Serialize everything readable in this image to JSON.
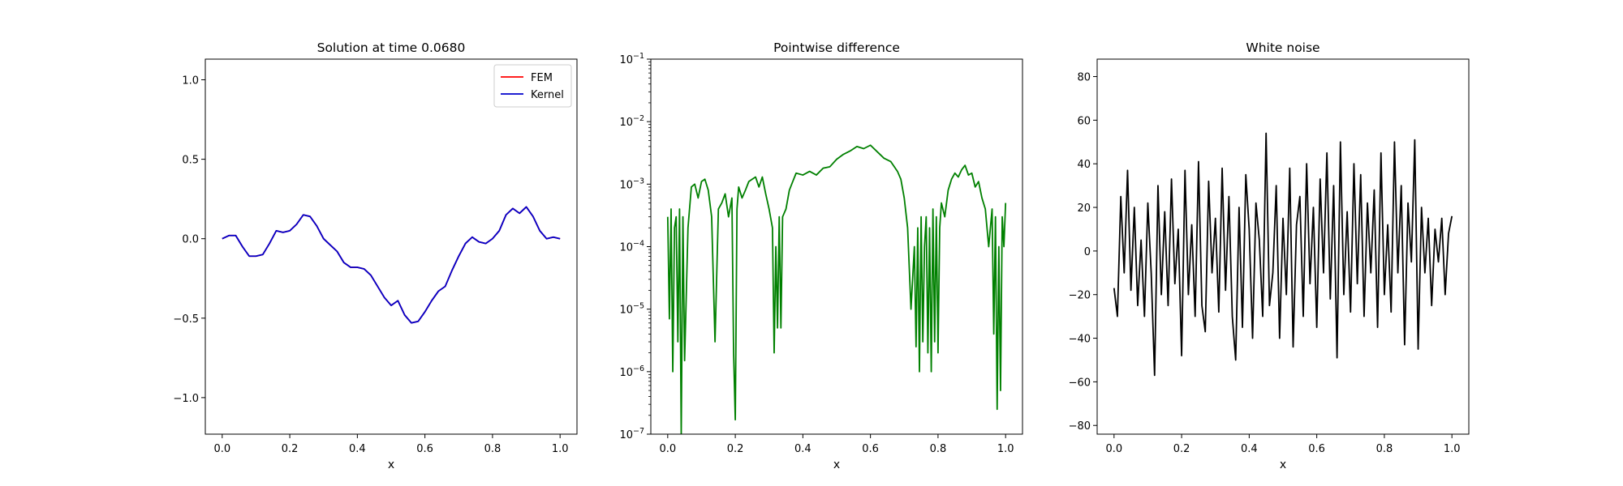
{
  "chart_data": [
    {
      "type": "line",
      "title": "Solution at time 0.0680",
      "xlabel": "x",
      "ylabel": "",
      "xlim": [
        -0.05,
        1.05
      ],
      "ylim": [
        -1.23,
        1.13
      ],
      "xticks": [
        0.0,
        0.2,
        0.4,
        0.6,
        0.8,
        1.0
      ],
      "xtick_labels": [
        "0.0",
        "0.2",
        "0.4",
        "0.6",
        "0.8",
        "1.0"
      ],
      "yticks": [
        1.0,
        0.5,
        0.0,
        -0.5,
        -1.0
      ],
      "ytick_labels": [
        "1.0",
        "0.5",
        "0.0",
        "−0.5",
        "−1.0"
      ],
      "grid": false,
      "legend": "top-right",
      "x": [
        0,
        0.02,
        0.04,
        0.06,
        0.08,
        0.1,
        0.12,
        0.14,
        0.16,
        0.18,
        0.2,
        0.22,
        0.24,
        0.26,
        0.28,
        0.3,
        0.32,
        0.34,
        0.36,
        0.38,
        0.4,
        0.42,
        0.44,
        0.46,
        0.48,
        0.5,
        0.52,
        0.54,
        0.56,
        0.58,
        0.6,
        0.62,
        0.64,
        0.66,
        0.68,
        0.7,
        0.72,
        0.74,
        0.76,
        0.78,
        0.8,
        0.82,
        0.84,
        0.86,
        0.88,
        0.9,
        0.92,
        0.94,
        0.96,
        0.98,
        1.0
      ],
      "series": [
        {
          "name": "FEM",
          "color": "#ff0000",
          "values": [
            0.0,
            0.02,
            0.02,
            -0.05,
            -0.11,
            -0.11,
            -0.1,
            -0.03,
            0.05,
            0.04,
            0.05,
            0.09,
            0.15,
            0.14,
            0.08,
            0.0,
            -0.04,
            -0.08,
            -0.15,
            -0.18,
            -0.18,
            -0.19,
            -0.23,
            -0.3,
            -0.37,
            -0.42,
            -0.39,
            -0.48,
            -0.53,
            -0.52,
            -0.46,
            -0.39,
            -0.33,
            -0.3,
            -0.2,
            -0.11,
            -0.03,
            0.01,
            -0.02,
            -0.03,
            0.0,
            0.05,
            0.15,
            0.19,
            0.16,
            0.2,
            0.14,
            0.05,
            0.0,
            0.01,
            0.0
          ]
        },
        {
          "name": "Kernel",
          "color": "#0000cc",
          "values": [
            0.0,
            0.02,
            0.02,
            -0.05,
            -0.11,
            -0.11,
            -0.1,
            -0.03,
            0.05,
            0.04,
            0.05,
            0.09,
            0.15,
            0.14,
            0.08,
            0.0,
            -0.04,
            -0.08,
            -0.15,
            -0.18,
            -0.18,
            -0.19,
            -0.23,
            -0.3,
            -0.37,
            -0.42,
            -0.39,
            -0.48,
            -0.53,
            -0.52,
            -0.46,
            -0.39,
            -0.33,
            -0.3,
            -0.2,
            -0.11,
            -0.03,
            0.01,
            -0.02,
            -0.03,
            0.0,
            0.05,
            0.15,
            0.19,
            0.16,
            0.2,
            0.14,
            0.05,
            0.0,
            0.01,
            0.0
          ]
        }
      ]
    },
    {
      "type": "line",
      "title": "Pointwise difference",
      "xlabel": "x",
      "ylabel": "",
      "yscale": "log",
      "xlim": [
        -0.05,
        1.05
      ],
      "ylim": [
        1e-07,
        0.1
      ],
      "xticks": [
        0.0,
        0.2,
        0.4,
        0.6,
        0.8,
        1.0
      ],
      "xtick_labels": [
        "0.0",
        "0.2",
        "0.4",
        "0.6",
        "0.8",
        "1.0"
      ],
      "yticks": [
        0.1,
        0.01,
        0.001,
        0.0001,
        1e-05,
        1e-06,
        1e-07
      ],
      "ytick_bases": [
        "10",
        "10",
        "10",
        "10",
        "10",
        "10",
        "10"
      ],
      "ytick_exponents": [
        "−1",
        "−2",
        "−3",
        "−4",
        "−5",
        "−6",
        "−7"
      ],
      "grid": false,
      "x": [
        0,
        0.005,
        0.01,
        0.015,
        0.02,
        0.025,
        0.03,
        0.035,
        0.04,
        0.045,
        0.05,
        0.06,
        0.07,
        0.08,
        0.09,
        0.1,
        0.11,
        0.12,
        0.13,
        0.14,
        0.15,
        0.16,
        0.17,
        0.18,
        0.19,
        0.195,
        0.2,
        0.205,
        0.21,
        0.22,
        0.23,
        0.24,
        0.25,
        0.26,
        0.27,
        0.28,
        0.29,
        0.3,
        0.31,
        0.315,
        0.32,
        0.325,
        0.33,
        0.335,
        0.34,
        0.35,
        0.36,
        0.37,
        0.38,
        0.4,
        0.42,
        0.44,
        0.46,
        0.48,
        0.5,
        0.52,
        0.54,
        0.56,
        0.58,
        0.6,
        0.62,
        0.64,
        0.66,
        0.68,
        0.69,
        0.7,
        0.71,
        0.72,
        0.73,
        0.735,
        0.74,
        0.745,
        0.75,
        0.755,
        0.76,
        0.765,
        0.77,
        0.775,
        0.78,
        0.785,
        0.79,
        0.795,
        0.8,
        0.805,
        0.81,
        0.82,
        0.83,
        0.84,
        0.85,
        0.86,
        0.87,
        0.88,
        0.89,
        0.9,
        0.91,
        0.92,
        0.93,
        0.94,
        0.95,
        0.96,
        0.965,
        0.97,
        0.975,
        0.98,
        0.985,
        0.99,
        0.995,
        1.0
      ],
      "series": [
        {
          "name": "",
          "color": "#008000",
          "values": [
            0.0003,
            7e-06,
            0.0004,
            1e-06,
            0.0002,
            0.0003,
            3e-06,
            0.0004,
            1e-07,
            0.0003,
            1.5e-06,
            0.0002,
            0.0009,
            0.001,
            0.0006,
            0.0011,
            0.0012,
            0.0008,
            0.0003,
            3e-06,
            0.0004,
            0.0005,
            0.0007,
            0.0003,
            0.0006,
            2e-06,
            1.7e-07,
            0.0004,
            0.0009,
            0.0006,
            0.0008,
            0.0011,
            0.0012,
            0.0013,
            0.0009,
            0.0013,
            0.0007,
            0.0004,
            0.0002,
            2e-06,
            0.0001,
            5e-06,
            0.0003,
            5e-06,
            0.0003,
            0.0004,
            0.0008,
            0.0011,
            0.0015,
            0.0014,
            0.0016,
            0.0014,
            0.0018,
            0.0019,
            0.0025,
            0.003,
            0.0034,
            0.004,
            0.0037,
            0.0042,
            0.0033,
            0.0026,
            0.0023,
            0.0016,
            0.0012,
            0.0006,
            0.0002,
            1e-05,
            0.0001,
            2.5e-06,
            0.0002,
            1e-06,
            0.0003,
            3e-06,
            0.0001,
            0.0003,
            2e-06,
            0.0002,
            1e-06,
            0.0004,
            3e-06,
            0.0003,
            2e-06,
            0.0002,
            0.0005,
            0.0003,
            0.0008,
            0.0012,
            0.0015,
            0.0013,
            0.0017,
            0.002,
            0.0014,
            0.0015,
            0.0009,
            0.0011,
            0.0006,
            0.0004,
            0.0001,
            0.0004,
            4e-06,
            0.0003,
            2.5e-07,
            0.0001,
            5e-07,
            0.0003,
            0.0001,
            0.0005
          ]
        }
      ]
    },
    {
      "type": "line",
      "title": "White noise",
      "xlabel": "x",
      "ylabel": "",
      "xlim": [
        -0.05,
        1.05
      ],
      "ylim": [
        -84,
        88
      ],
      "xticks": [
        0.0,
        0.2,
        0.4,
        0.6,
        0.8,
        1.0
      ],
      "xtick_labels": [
        "0.0",
        "0.2",
        "0.4",
        "0.6",
        "0.8",
        "1.0"
      ],
      "yticks": [
        80,
        60,
        40,
        20,
        0,
        -20,
        -40,
        -60,
        -80
      ],
      "ytick_labels": [
        "80",
        "60",
        "40",
        "20",
        "0",
        "−20",
        "−40",
        "−60",
        "−80"
      ],
      "grid": false,
      "x": [
        0,
        0.01,
        0.02,
        0.03,
        0.04,
        0.05,
        0.06,
        0.07,
        0.08,
        0.09,
        0.1,
        0.11,
        0.12,
        0.13,
        0.14,
        0.15,
        0.16,
        0.17,
        0.18,
        0.19,
        0.2,
        0.21,
        0.22,
        0.23,
        0.24,
        0.25,
        0.26,
        0.27,
        0.28,
        0.29,
        0.3,
        0.31,
        0.32,
        0.33,
        0.34,
        0.35,
        0.36,
        0.37,
        0.38,
        0.39,
        0.4,
        0.41,
        0.42,
        0.43,
        0.44,
        0.45,
        0.46,
        0.47,
        0.48,
        0.49,
        0.5,
        0.51,
        0.52,
        0.53,
        0.54,
        0.55,
        0.56,
        0.57,
        0.58,
        0.59,
        0.6,
        0.61,
        0.62,
        0.63,
        0.64,
        0.65,
        0.66,
        0.67,
        0.68,
        0.69,
        0.7,
        0.71,
        0.72,
        0.73,
        0.74,
        0.75,
        0.76,
        0.77,
        0.78,
        0.79,
        0.8,
        0.81,
        0.82,
        0.83,
        0.84,
        0.85,
        0.86,
        0.87,
        0.88,
        0.89,
        0.9,
        0.91,
        0.92,
        0.93,
        0.94,
        0.95,
        0.96,
        0.97,
        0.98,
        0.99,
        1.0
      ],
      "series": [
        {
          "name": "",
          "color": "#000000",
          "values": [
            -17,
            -30,
            25,
            -10,
            37,
            -18,
            20,
            -25,
            5,
            -30,
            22,
            -10,
            -57,
            30,
            -20,
            18,
            -25,
            33,
            -15,
            10,
            -48,
            37,
            -20,
            12,
            -30,
            41,
            -25,
            -37,
            32,
            -10,
            15,
            -28,
            38,
            -18,
            25,
            -30,
            -50,
            20,
            -35,
            35,
            10,
            -40,
            22,
            5,
            -30,
            54,
            -25,
            -10,
            30,
            -40,
            15,
            -20,
            38,
            -44,
            12,
            25,
            -30,
            40,
            -15,
            20,
            -35,
            33,
            -10,
            45,
            -22,
            30,
            -49,
            50,
            -20,
            18,
            -28,
            40,
            -15,
            35,
            -30,
            22,
            -10,
            28,
            -35,
            45,
            -20,
            12,
            -28,
            50,
            -10,
            30,
            -43,
            22,
            -5,
            51,
            -45,
            20,
            -10,
            15,
            -25,
            10,
            -5,
            15,
            -20,
            8,
            16
          ]
        }
      ]
    }
  ]
}
